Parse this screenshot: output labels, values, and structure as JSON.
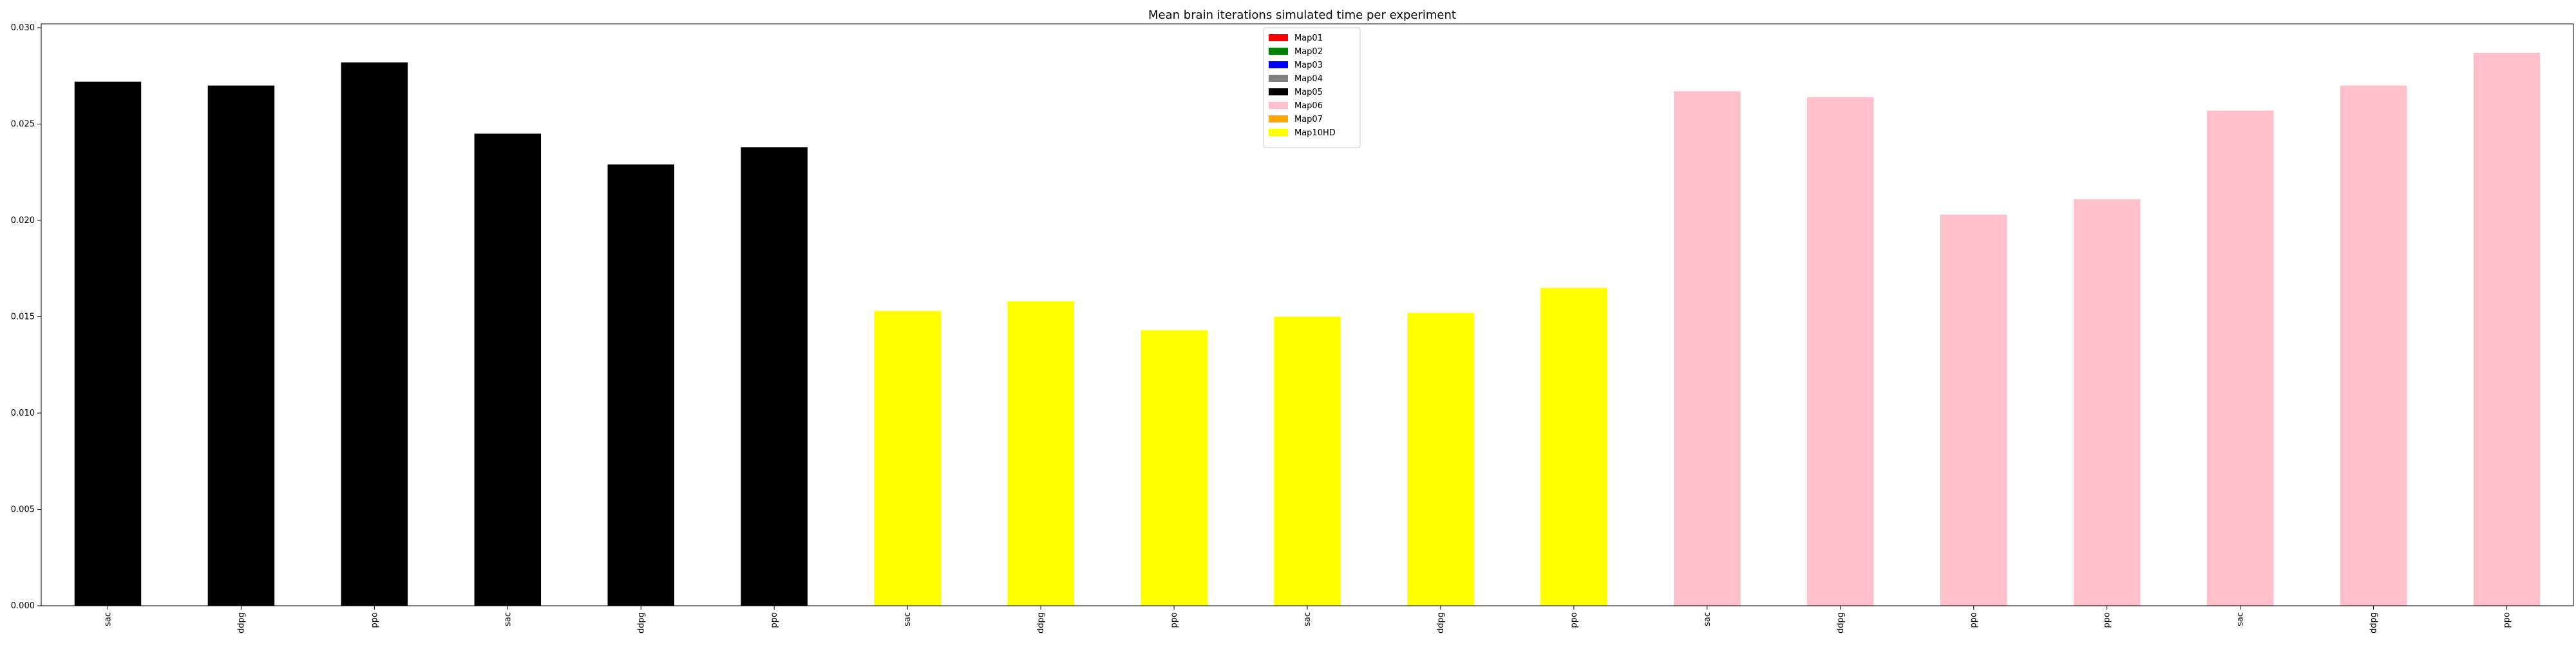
{
  "chart_data": {
    "type": "bar",
    "title": "Mean brain iterations simulated time per experiment",
    "xlabel": "",
    "ylabel": "",
    "ylim": [
      0,
      0.0302
    ],
    "yticks": [
      "0.000",
      "0.005",
      "0.010",
      "0.015",
      "0.020",
      "0.025",
      "0.030"
    ],
    "ytick_values": [
      0,
      0.005,
      0.01,
      0.015,
      0.02,
      0.025,
      0.03
    ],
    "grid": false,
    "legend_position": "top-center",
    "legend": [
      {
        "name": "Map01",
        "color": "#ff0000"
      },
      {
        "name": "Map02",
        "color": "#008000"
      },
      {
        "name": "Map03",
        "color": "#0000ff"
      },
      {
        "name": "Map04",
        "color": "#808080"
      },
      {
        "name": "Map05",
        "color": "#000000"
      },
      {
        "name": "Map06",
        "color": "#ffc0cb"
      },
      {
        "name": "Map07",
        "color": "#ffa500"
      },
      {
        "name": "Map10HD",
        "color": "#ffff00"
      }
    ],
    "categories": [
      "sac",
      "ddpg",
      "ppo",
      "sac",
      "ddpg",
      "ppo",
      "sac",
      "ddpg",
      "ppo",
      "sac",
      "ddpg",
      "ppo",
      "sac",
      "ddpg",
      "ppo",
      "ppo",
      "sac",
      "ddpg",
      "ppo"
    ],
    "values": [
      0.0272,
      0.027,
      0.0282,
      0.0245,
      0.0229,
      0.0238,
      0.0153,
      0.0158,
      0.0143,
      0.015,
      0.0152,
      0.0165,
      0.0267,
      0.0264,
      0.0203,
      0.0211,
      0.0257,
      0.027,
      0.0287
    ],
    "bar_colors": [
      "#000000",
      "#000000",
      "#000000",
      "#000000",
      "#000000",
      "#000000",
      "#ffff00",
      "#ffff00",
      "#ffff00",
      "#ffff00",
      "#ffff00",
      "#ffff00",
      "#ffc0cb",
      "#ffc0cb",
      "#ffc0cb",
      "#ffc0cb",
      "#ffc0cb",
      "#ffc0cb",
      "#ffc0cb"
    ]
  }
}
